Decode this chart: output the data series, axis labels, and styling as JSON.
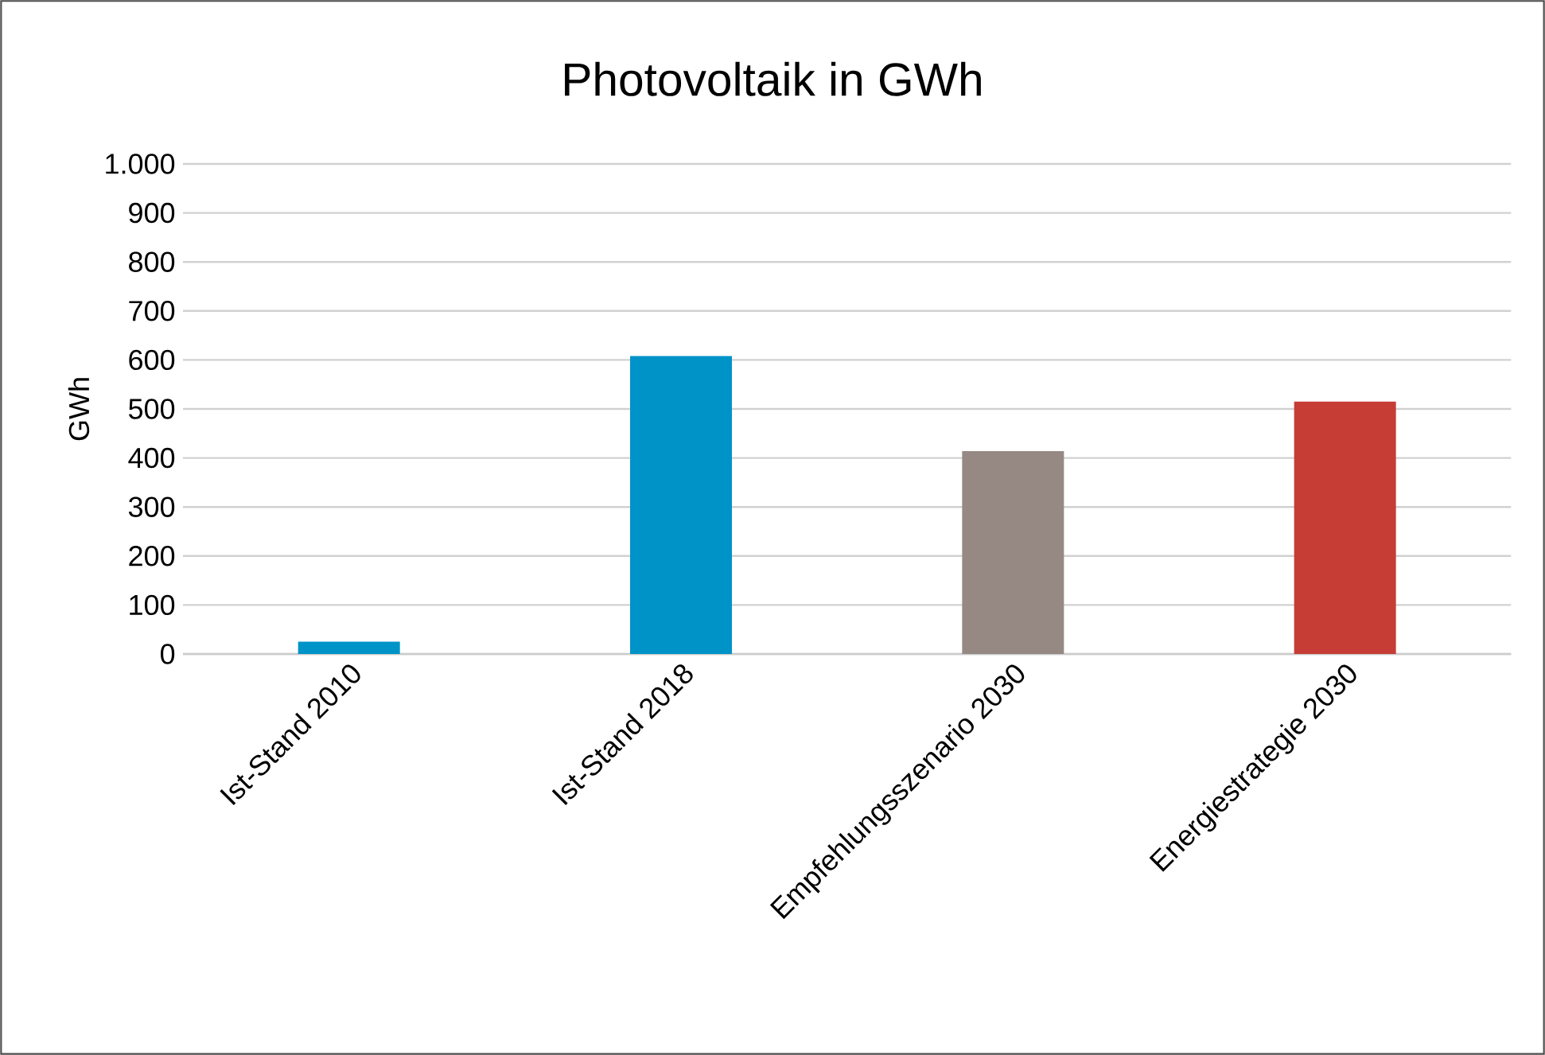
{
  "chart_data": {
    "type": "bar",
    "title": "Photovoltaik in GWh",
    "ylabel": "GWh",
    "categories": [
      "Ist-Stand 2010",
      "Ist-Stand 2018",
      "Empfehlungsszenario 2030",
      "Energiestrategie 2030"
    ],
    "values": [
      25,
      608,
      414,
      515
    ],
    "colors": [
      "#0093c8",
      "#0093c8",
      "#968984",
      "#c63d36"
    ],
    "ylim": [
      0,
      1000
    ],
    "yticks": [
      0,
      100,
      200,
      300,
      400,
      500,
      600,
      700,
      800,
      900,
      {
        "value": 1000,
        "label": "1.000"
      }
    ],
    "grid": "y"
  }
}
